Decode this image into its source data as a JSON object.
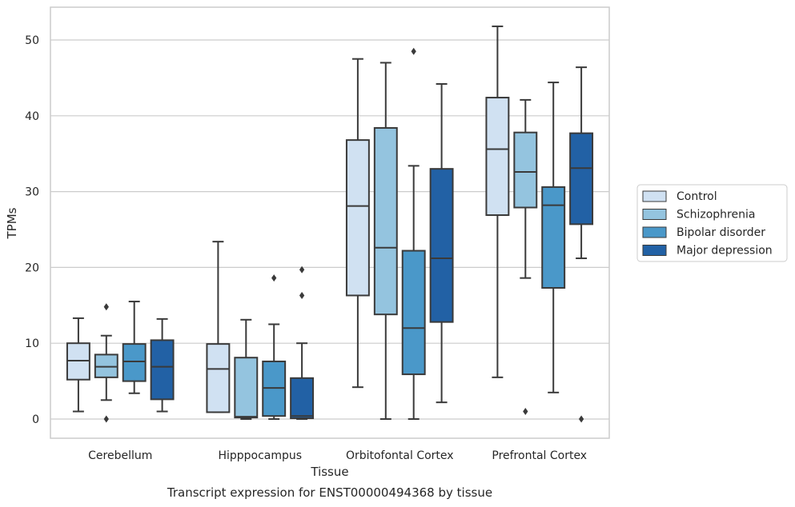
{
  "chart_data": {
    "type": "box",
    "caption": "Transcript expression for ENST00000494368 by tissue",
    "xlabel": "Tissue",
    "ylabel": "TPMs",
    "ylim": [
      -2.5,
      54.5
    ],
    "yticks": [
      0,
      10,
      20,
      30,
      40,
      50
    ],
    "grid": "horizontal",
    "legend_position": "right",
    "categories": [
      "Cerebellum",
      "Hipppocampus",
      "Orbitofontal Cortex",
      "Prefrontal Cortex"
    ],
    "series": [
      {
        "name": "Control",
        "color": "#d0e1f2",
        "boxes": [
          {
            "whislo": 1.0,
            "q1": 5.2,
            "med": 7.7,
            "q3": 10.0,
            "whishi": 13.3,
            "fliers": []
          },
          {
            "whislo": 0.9,
            "q1": 0.9,
            "med": 6.6,
            "q3": 9.9,
            "whishi": 23.4,
            "fliers": []
          },
          {
            "whislo": 4.2,
            "q1": 16.3,
            "med": 28.1,
            "q3": 36.8,
            "whishi": 47.5,
            "fliers": []
          },
          {
            "whislo": 5.5,
            "q1": 26.9,
            "med": 35.6,
            "q3": 42.4,
            "whishi": 51.8,
            "fliers": []
          }
        ]
      },
      {
        "name": "Schizophrenia",
        "color": "#94c4df",
        "boxes": [
          {
            "whislo": 2.5,
            "q1": 5.5,
            "med": 6.9,
            "q3": 8.5,
            "whishi": 11.0,
            "fliers": [
              0.0,
              14.8
            ]
          },
          {
            "whislo": 0.0,
            "q1": 0.2,
            "med": 0.3,
            "q3": 8.1,
            "whishi": 13.1,
            "fliers": []
          },
          {
            "whislo": 0.0,
            "q1": 13.8,
            "med": 22.6,
            "q3": 38.4,
            "whishi": 47.0,
            "fliers": []
          },
          {
            "whislo": 18.6,
            "q1": 27.9,
            "med": 32.6,
            "q3": 37.8,
            "whishi": 42.1,
            "fliers": [
              1.0
            ]
          }
        ]
      },
      {
        "name": "Bipolar disorder",
        "color": "#4a98c9",
        "boxes": [
          {
            "whislo": 3.4,
            "q1": 5.0,
            "med": 7.6,
            "q3": 9.9,
            "whishi": 15.5,
            "fliers": []
          },
          {
            "whislo": 0.0,
            "q1": 0.4,
            "med": 4.1,
            "q3": 7.6,
            "whishi": 12.5,
            "fliers": [
              18.6
            ]
          },
          {
            "whislo": 0.0,
            "q1": 5.9,
            "med": 12.0,
            "q3": 22.2,
            "whishi": 33.4,
            "fliers": [
              48.5
            ]
          },
          {
            "whislo": 3.5,
            "q1": 17.3,
            "med": 28.2,
            "q3": 30.6,
            "whishi": 44.4,
            "fliers": []
          }
        ]
      },
      {
        "name": "Major depression",
        "color": "#2261a5",
        "boxes": [
          {
            "whislo": 1.0,
            "q1": 2.6,
            "med": 6.9,
            "q3": 10.4,
            "whishi": 13.2,
            "fliers": []
          },
          {
            "whislo": 0.0,
            "q1": 0.1,
            "med": 0.4,
            "q3": 5.4,
            "whishi": 10.0,
            "fliers": [
              16.3,
              19.7
            ]
          },
          {
            "whislo": 2.2,
            "q1": 12.8,
            "med": 21.2,
            "q3": 33.0,
            "whishi": 44.2,
            "fliers": []
          },
          {
            "whislo": 21.2,
            "q1": 25.7,
            "med": 33.1,
            "q3": 37.7,
            "whishi": 46.4,
            "fliers": [
              0.0
            ]
          }
        ]
      }
    ]
  }
}
